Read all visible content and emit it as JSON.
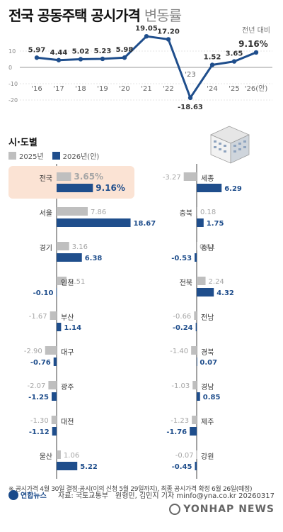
{
  "header": {
    "title_bold": "전국 공동주택 공시가격",
    "title_light": "변동률",
    "unit": "전년 대비"
  },
  "colors": {
    "line": "#1f4e8c",
    "bar_2025": "#bfbfbf",
    "bar_2026": "#1f4e8c",
    "highlight_bg": "#fbe3d4",
    "value_2025": "#a6a6a6",
    "value_2026": "#1f4e8c"
  },
  "chart_data": [
    {
      "type": "line",
      "categories": [
        "'16",
        "'17",
        "'18",
        "'19",
        "'20",
        "'21",
        "'22",
        "'23",
        "'24",
        "'25",
        "'26(안)"
      ],
      "values": [
        5.97,
        4.44,
        5.02,
        5.23,
        5.98,
        19.05,
        17.2,
        -18.63,
        1.52,
        3.65,
        9.16
      ],
      "value_labels": [
        "5.97",
        "4.44",
        "5.02",
        "5.23",
        "5.98",
        "19.05",
        "17.20",
        "-18.63",
        "1.52",
        "3.65",
        "9.16%"
      ],
      "y_ticks": [
        "10",
        "0",
        "-10",
        "-20"
      ],
      "ylim": [
        -22,
        22
      ]
    },
    {
      "type": "bar",
      "title": "시·도별",
      "legend": [
        "2025년",
        "2026년(안)"
      ],
      "left": [
        {
          "region": "전국",
          "v2025": 3.65,
          "v2026": 9.16,
          "l2025": "3.65%",
          "l2026": "9.16%"
        },
        {
          "region": "서울",
          "v2025": 7.86,
          "v2026": 18.67,
          "l2025": "7.86",
          "l2026": "18.67"
        },
        {
          "region": "경기",
          "v2025": 3.16,
          "v2026": 6.38,
          "l2025": "3.16",
          "l2026": "6.38"
        },
        {
          "region": "인천",
          "v2025": 2.51,
          "v2026": -0.1,
          "l2025": "2.51",
          "l2026": "-0.10"
        },
        {
          "region": "부산",
          "v2025": -1.67,
          "v2026": 1.14,
          "l2025": "-1.67",
          "l2026": "1.14"
        },
        {
          "region": "대구",
          "v2025": -2.9,
          "v2026": -0.76,
          "l2025": "-2.90",
          "l2026": "-0.76"
        },
        {
          "region": "광주",
          "v2025": -2.07,
          "v2026": -1.25,
          "l2025": "-2.07",
          "l2026": "-1.25"
        },
        {
          "region": "대전",
          "v2025": -1.3,
          "v2026": -1.12,
          "l2025": "-1.30",
          "l2026": "-1.12"
        },
        {
          "region": "울산",
          "v2025": 1.06,
          "v2026": 5.22,
          "l2025": "1.06",
          "l2026": "5.22"
        }
      ],
      "right": [
        {
          "region": "세종",
          "v2025": -3.27,
          "v2026": 6.29,
          "l2025": "-3.27",
          "l2026": "6.29"
        },
        {
          "region": "충북",
          "v2025": 0.18,
          "v2026": 1.75,
          "l2025": "0.18",
          "l2026": "1.75"
        },
        {
          "region": "충남",
          "v2025": 0.01,
          "v2026": -0.53,
          "l2025": "0.01",
          "l2026": "-0.53"
        },
        {
          "region": "전북",
          "v2025": 2.24,
          "v2026": 4.32,
          "l2025": "2.24",
          "l2026": "4.32"
        },
        {
          "region": "전남",
          "v2025": -0.66,
          "v2026": -0.24,
          "l2025": "-0.66",
          "l2026": "-0.24"
        },
        {
          "region": "경북",
          "v2025": -1.4,
          "v2026": 0.07,
          "l2025": "-1.40",
          "l2026": "0.07"
        },
        {
          "region": "경남",
          "v2025": -1.03,
          "v2026": 0.85,
          "l2025": "-1.03",
          "l2026": "0.85"
        },
        {
          "region": "제주",
          "v2025": -1.23,
          "v2026": -1.76,
          "l2025": "-1.23",
          "l2026": "-1.76"
        },
        {
          "region": "강원",
          "v2025": -0.07,
          "v2026": -0.45,
          "l2025": "-0.07",
          "l2026": "-0.45"
        }
      ]
    }
  ],
  "footer": {
    "note": "※ 공시가격 4월 30일 결정·공시(이의 신청 5월 29일까지), 최종 공시가격 확정 6월 26일(예정)",
    "logo_text": "연합뉴스",
    "source": "자료: 국토교통부",
    "credit": "원형민, 김민지 기자 minfo@yna.co.kr 20260317",
    "watermark": "YONHAP NEWS"
  }
}
